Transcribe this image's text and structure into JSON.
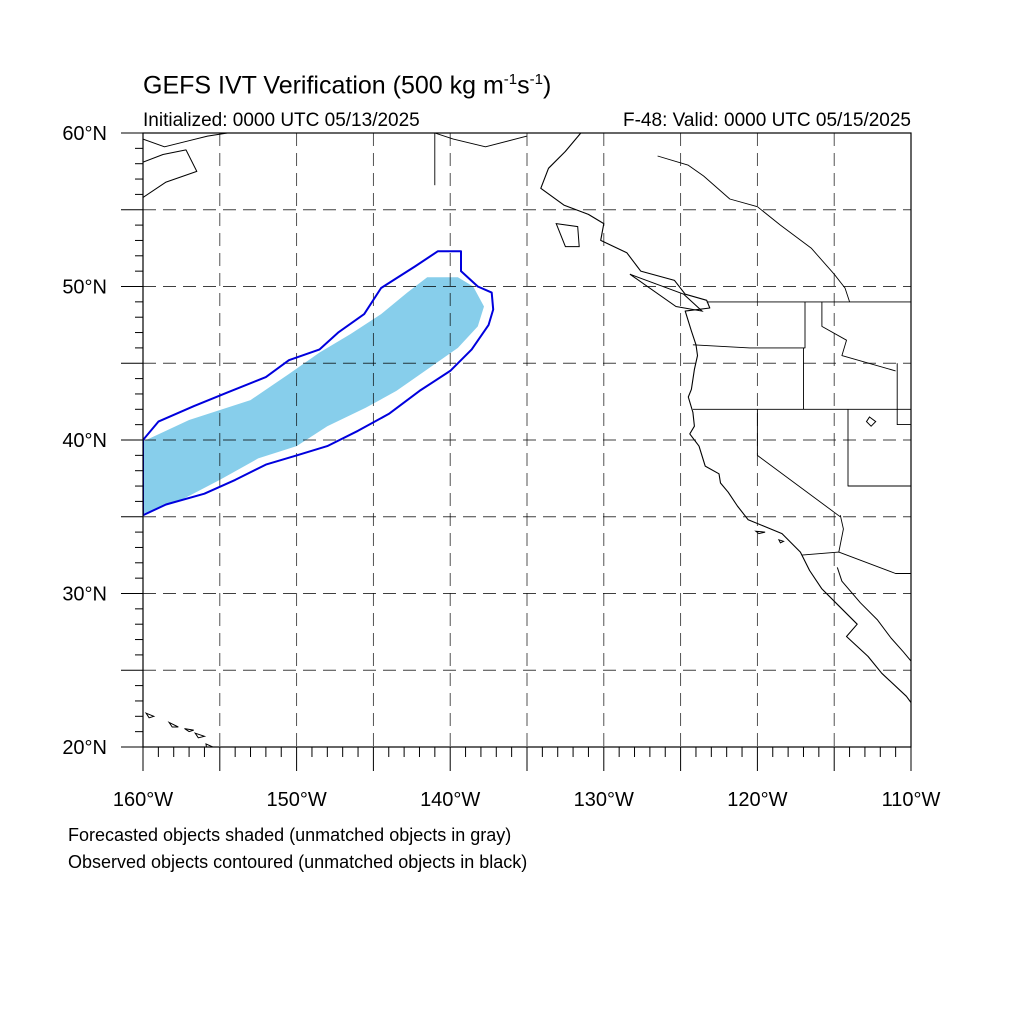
{
  "title": {
    "main": "GEFS IVT Verification (500 kg m",
    "exp1": "-1",
    "mid": "s",
    "exp2": "-1",
    "close": ")"
  },
  "initialized": "Initialized: 0000 UTC 05/13/2025",
  "valid": "F-48: Valid: 0000 UTC 05/15/2025",
  "map": {
    "lon_range": [
      -160,
      -110
    ],
    "lat_range": [
      20,
      60
    ],
    "gridlines": "dashed",
    "lat_labels": [
      {
        "lat": 60,
        "text": "60°N"
      },
      {
        "lat": 50,
        "text": "50°N"
      },
      {
        "lat": 40,
        "text": "40°N"
      },
      {
        "lat": 30,
        "text": "30°N"
      },
      {
        "lat": 20,
        "text": "20°N"
      }
    ],
    "lon_labels": [
      {
        "lon": -160,
        "text": "160°W"
      },
      {
        "lon": -150,
        "text": "150°W"
      },
      {
        "lon": -140,
        "text": "140°W"
      },
      {
        "lon": -130,
        "text": "130°W"
      },
      {
        "lon": -120,
        "text": "120°W"
      },
      {
        "lon": -110,
        "text": "110°W"
      }
    ],
    "colors": {
      "forecast_fill": "#87ceeb",
      "observed_contour": "#0000dd",
      "coastline": "#000000",
      "grid": "#000000"
    },
    "forecast_object": [
      [
        -160,
        35.2
      ],
      [
        -160,
        39.9
      ],
      [
        -157,
        41.3
      ],
      [
        -153,
        42.6
      ],
      [
        -150.5,
        44.3
      ],
      [
        -148.5,
        45.7
      ],
      [
        -146.5,
        46.9
      ],
      [
        -144.5,
        48.2
      ],
      [
        -142.8,
        49.6
      ],
      [
        -141.5,
        50.6
      ],
      [
        -139.5,
        50.6
      ],
      [
        -138.5,
        50.0
      ],
      [
        -137.8,
        48.7
      ],
      [
        -138.2,
        47.4
      ],
      [
        -139.5,
        46.0
      ],
      [
        -141.5,
        44.6
      ],
      [
        -143.5,
        43.2
      ],
      [
        -145.5,
        42.1
      ],
      [
        -148,
        40.9
      ],
      [
        -150,
        39.6
      ],
      [
        -152.5,
        38.8
      ],
      [
        -155,
        37.4
      ],
      [
        -157.5,
        36.1
      ],
      [
        -160,
        35.2
      ]
    ],
    "observed_object": [
      [
        -160,
        35.1
      ],
      [
        -158.5,
        35.8
      ],
      [
        -156,
        36.5
      ],
      [
        -154,
        37.4
      ],
      [
        -152,
        38.4
      ],
      [
        -150,
        39.0
      ],
      [
        -148,
        39.6
      ],
      [
        -146,
        40.6
      ],
      [
        -144,
        41.7
      ],
      [
        -142,
        43.2
      ],
      [
        -140,
        44.5
      ],
      [
        -138.6,
        45.9
      ],
      [
        -137.5,
        47.5
      ],
      [
        -137.2,
        48.5
      ],
      [
        -137.3,
        49.6
      ],
      [
        -138.2,
        50.0
      ],
      [
        -139.3,
        51.0
      ],
      [
        -139.3,
        52.3
      ],
      [
        -140.8,
        52.3
      ],
      [
        -142.3,
        51.3
      ],
      [
        -144.5,
        49.9
      ],
      [
        -145.6,
        48.2
      ],
      [
        -147.3,
        47.0
      ],
      [
        -148.5,
        45.9
      ],
      [
        -150.5,
        45.2
      ],
      [
        -152,
        44.1
      ],
      [
        -154.5,
        43.1
      ],
      [
        -156.7,
        42.2
      ],
      [
        -159,
        41.2
      ],
      [
        -160,
        40.0
      ]
    ],
    "coastline": [
      [
        -131.5,
        60
      ],
      [
        -132.5,
        58.8
      ],
      [
        -133.6,
        57.7
      ],
      [
        -134.1,
        56.4
      ],
      [
        -132.6,
        55.3
      ],
      [
        -131,
        54.7
      ],
      [
        -130,
        54.1
      ],
      [
        -130.2,
        53
      ],
      [
        -128.5,
        52.2
      ],
      [
        -127.6,
        51
      ],
      [
        -125.4,
        50.4
      ],
      [
        -124.7,
        49.5
      ],
      [
        -123.3,
        49.1
      ],
      [
        -123.1,
        48.6
      ],
      [
        -124.7,
        48.4
      ],
      [
        -124.3,
        47.1
      ],
      [
        -124,
        46.2
      ],
      [
        -123.9,
        45.5
      ],
      [
        -124.1,
        44.6
      ],
      [
        -124.3,
        43.3
      ],
      [
        -124.5,
        42.8
      ],
      [
        -124.2,
        41.8
      ],
      [
        -124.1,
        40.9
      ],
      [
        -124.4,
        40.4
      ],
      [
        -123.8,
        39.6
      ],
      [
        -123.4,
        38.3
      ],
      [
        -122.5,
        37.8
      ],
      [
        -122.4,
        37.2
      ],
      [
        -121.9,
        36.6
      ],
      [
        -121.3,
        35.7
      ],
      [
        -120.6,
        34.8
      ],
      [
        -119.6,
        34.4
      ],
      [
        -118.4,
        33.9
      ],
      [
        -117.2,
        32.7
      ],
      [
        -116.6,
        31.5
      ],
      [
        -115.8,
        30.3
      ],
      [
        -114.7,
        29.2
      ],
      [
        -113.5,
        28
      ],
      [
        -114.2,
        27.2
      ],
      [
        -112.8,
        25.9
      ],
      [
        -111.9,
        24.8
      ],
      [
        -110.3,
        23.3
      ],
      [
        -110,
        22.9
      ]
    ],
    "gulf_coast": [
      [
        -114.8,
        31.7
      ],
      [
        -114.5,
        30.8
      ],
      [
        -113.3,
        29.4
      ],
      [
        -112.2,
        28.3
      ],
      [
        -111.3,
        27.1
      ],
      [
        -110.5,
        26.2
      ],
      [
        -110,
        25.6
      ]
    ],
    "land_borders": [
      [
        [
          -141,
          60
        ],
        [
          -141,
          56.6
        ]
      ],
      [
        [
          -123.3,
          49
        ],
        [
          -110,
          49
        ]
      ],
      [
        [
          -124.2,
          46.2
        ],
        [
          -120.5,
          46
        ],
        [
          -116.9,
          46
        ],
        [
          -116.9,
          49
        ]
      ],
      [
        [
          -124.2,
          42
        ],
        [
          -110,
          42
        ]
      ],
      [
        [
          -117,
          42
        ],
        [
          -117,
          46
        ]
      ],
      [
        [
          -115.8,
          49
        ],
        [
          -115.8,
          47.4
        ],
        [
          -114.2,
          46.5
        ],
        [
          -114.5,
          45.5
        ],
        [
          -111,
          44.5
        ]
      ],
      [
        [
          -120,
          42
        ],
        [
          -120,
          39
        ],
        [
          -114.6,
          35
        ]
      ],
      [
        [
          -114.1,
          42
        ],
        [
          -114.1,
          37
        ],
        [
          -110,
          37
        ]
      ],
      [
        [
          -117.1,
          32.5
        ],
        [
          -114.7,
          32.7
        ],
        [
          -111,
          31.3
        ],
        [
          -110,
          31.3
        ]
      ],
      [
        [
          -114.6,
          35.1
        ],
        [
          -114.4,
          34.2
        ],
        [
          -114.7,
          32.7
        ]
      ],
      [
        [
          -110.9,
          45
        ],
        [
          -110.9,
          41
        ],
        [
          -110,
          41
        ]
      ],
      [
        [
          -135,
          59.8
        ],
        [
          -137.7,
          59.1
        ],
        [
          -139.8,
          59.6
        ],
        [
          -141,
          60
        ]
      ]
    ],
    "canada_outline": [
      [
        -126.5,
        58.5
      ],
      [
        -124.5,
        57.9
      ],
      [
        -123.5,
        57.2
      ],
      [
        -121.8,
        55.7
      ],
      [
        -120,
        55.2
      ],
      [
        -118.5,
        54
      ],
      [
        -116.5,
        52.5
      ],
      [
        -115,
        50.8
      ],
      [
        -114.3,
        49.9
      ],
      [
        -114,
        49
      ]
    ],
    "islands": [
      [
        [
          -128.3,
          50.8
        ],
        [
          -125.3,
          48.7
        ],
        [
          -123.6,
          48.4
        ],
        [
          -124.8,
          49.5
        ],
        [
          -127.5,
          50.5
        ],
        [
          -128.3,
          50.8
        ]
      ],
      [
        [
          -133.1,
          54.1
        ],
        [
          -131.7,
          53.9
        ],
        [
          -131.6,
          52.6
        ],
        [
          -132.5,
          52.6
        ],
        [
          -133.1,
          54.1
        ]
      ],
      [
        [
          -159.8,
          22.2
        ],
        [
          -159.3,
          22.0
        ],
        [
          -159.6,
          21.9
        ],
        [
          -159.8,
          22.2
        ]
      ],
      [
        [
          -158.3,
          21.6
        ],
        [
          -157.7,
          21.3
        ],
        [
          -158.1,
          21.3
        ],
        [
          -158.3,
          21.6
        ]
      ],
      [
        [
          -157.3,
          21.2
        ],
        [
          -156.7,
          21.1
        ],
        [
          -157.0,
          21.0
        ],
        [
          -157.3,
          21.2
        ]
      ],
      [
        [
          -156.6,
          20.9
        ],
        [
          -156.0,
          20.7
        ],
        [
          -156.4,
          20.6
        ],
        [
          -156.6,
          20.9
        ]
      ],
      [
        [
          -155.9,
          20.2
        ],
        [
          -155.0,
          19.8
        ],
        [
          -155.8,
          19.5
        ],
        [
          -155.9,
          20.2
        ]
      ],
      [
        [
          -118.6,
          33.5
        ],
        [
          -118.3,
          33.4
        ],
        [
          -118.5,
          33.3
        ],
        [
          -118.6,
          33.5
        ]
      ],
      [
        [
          -120.1,
          34.05
        ],
        [
          -119.5,
          34.0
        ],
        [
          -119.9,
          33.9
        ],
        [
          -120.1,
          34.05
        ]
      ]
    ],
    "russia_coast": [
      [
        -160,
        58.1
      ],
      [
        -158.7,
        58.6
      ],
      [
        -157.2,
        58.9
      ],
      [
        -156.5,
        57.5
      ],
      [
        -158.5,
        56.8
      ],
      [
        -160,
        55.8
      ]
    ],
    "alaska_coast": [
      [
        -160,
        59.6
      ],
      [
        -158.6,
        59.1
      ],
      [
        -157.0,
        59.5
      ],
      [
        -155.8,
        59.8
      ],
      [
        -154.5,
        60
      ]
    ],
    "lakes": [
      [
        [
          -112.7,
          41.5
        ],
        [
          -112.3,
          41.2
        ],
        [
          -112.6,
          40.9
        ],
        [
          -112.9,
          41.2
        ],
        [
          -112.7,
          41.5
        ]
      ]
    ]
  },
  "notes": {
    "line1": "Forecasted objects shaded (unmatched objects in gray)",
    "line2": "Observed objects contoured (unmatched objects in black)"
  }
}
